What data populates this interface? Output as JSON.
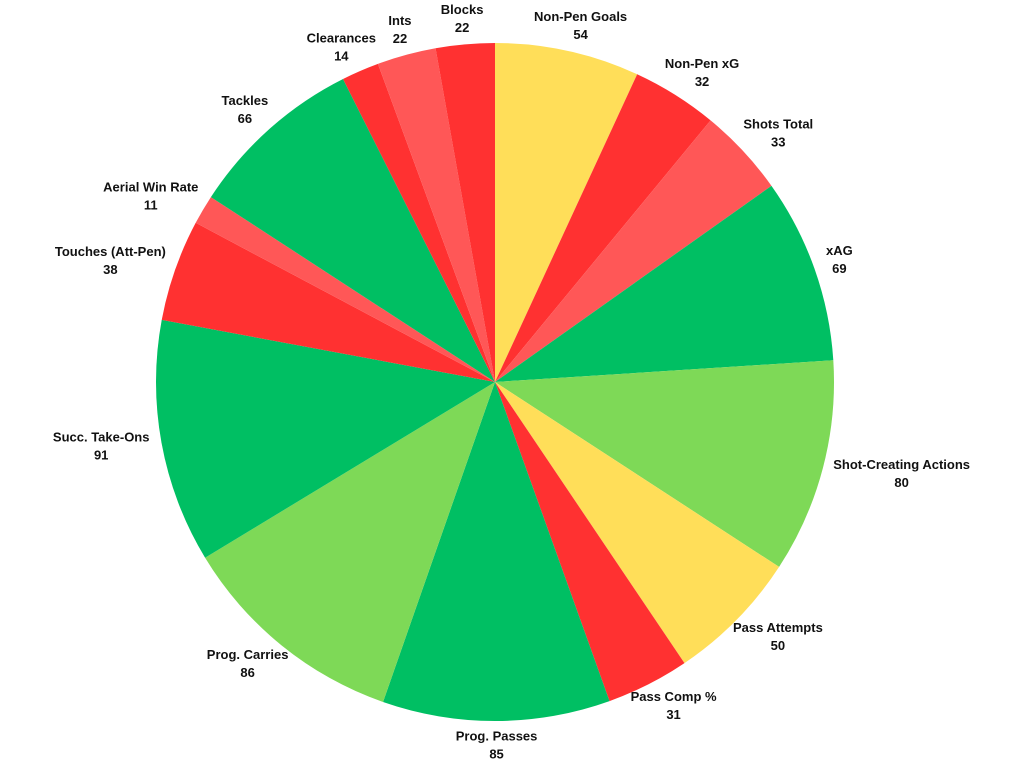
{
  "chart_data": {
    "type": "pie",
    "categories": [
      "Non-Pen Goals",
      "Non-Pen xG",
      "Shots Total",
      "xAG",
      "Shot-Creating Actions",
      "Pass Attempts",
      "Pass Comp %",
      "Prog. Passes",
      "Prog. Carries",
      "Succ. Take-Ons",
      "Touches (Att-Pen)",
      "Aerial Win Rate",
      "Tackles",
      "Clearances",
      "Ints",
      "Blocks"
    ],
    "values": [
      54,
      32,
      33,
      69,
      80,
      50,
      31,
      85,
      86,
      91,
      38,
      11,
      66,
      14,
      22,
      22
    ],
    "colors": [
      "#ffde59",
      "#ff3131",
      "#ff5757",
      "#00bf63",
      "#7ed957",
      "#ffde59",
      "#ff3131",
      "#00bf63",
      "#7ed957",
      "#00bf63",
      "#ff3131",
      "#ff5757",
      "#00bf63",
      "#ff3131",
      "#ff5757",
      "#ff3131"
    ]
  }
}
